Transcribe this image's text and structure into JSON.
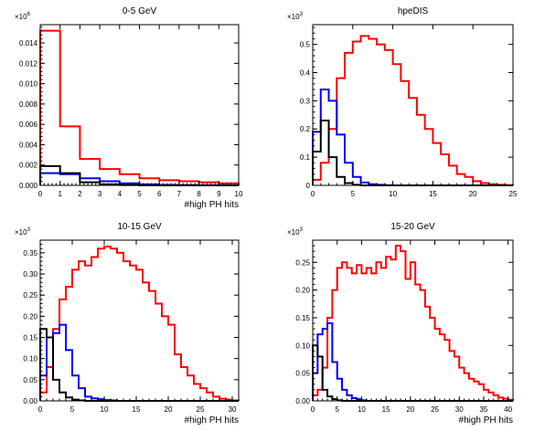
{
  "chart_data": [
    {
      "type": "histogram",
      "title": "0-5 GeV",
      "xlabel": "#high PH hits",
      "multiplier_label": "×10",
      "multiplier_exp": "6",
      "xlim": [
        0,
        10
      ],
      "ylim": [
        0,
        0.0158
      ],
      "xticks": [
        0,
        1,
        2,
        3,
        4,
        5,
        6,
        7,
        8,
        9,
        10
      ],
      "yticks": [
        0,
        0.002,
        0.004,
        0.006,
        0.008,
        0.01,
        0.012,
        0.014
      ],
      "ytick_labels": [
        "0.000",
        "0.002",
        "0.004",
        "0.006",
        "0.008",
        "0.010",
        "0.012",
        "0.014"
      ],
      "bin_edges": [
        0,
        1,
        2,
        3,
        4,
        5,
        6,
        7,
        8,
        9,
        10
      ],
      "series": [
        {
          "color": "#ff0000",
          "values": [
            0.0152,
            0.0058,
            0.0026,
            0.0016,
            0.0011,
            0.0007,
            0.0005,
            0.0004,
            0.0003,
            0.0002
          ]
        },
        {
          "color": "#0000ff",
          "values": [
            0.0012,
            0.0011,
            0.0007,
            0.0004,
            0.0002,
            0.0001,
            5e-05,
            3e-05,
            2e-05,
            1e-05
          ]
        },
        {
          "color": "#000000",
          "values": [
            0.0019,
            0.0012,
            0.0003,
            0.0001,
            3e-05,
            1e-05,
            0,
            0,
            0,
            0
          ]
        }
      ]
    },
    {
      "type": "histogram",
      "title": "hpeDIS",
      "xlabel": "",
      "multiplier_label": "×10",
      "multiplier_exp": "3",
      "xlim": [
        0,
        25
      ],
      "ylim": [
        0,
        0.57
      ],
      "xticks": [
        0,
        5,
        10,
        15,
        20,
        25
      ],
      "yticks": [
        0,
        0.1,
        0.2,
        0.3,
        0.4,
        0.5
      ],
      "ytick_labels": [
        "0",
        "0.1",
        "0.2",
        "0.3",
        "0.4",
        "0.5"
      ],
      "bin_edges": [
        0,
        1,
        2,
        3,
        4,
        5,
        6,
        7,
        8,
        9,
        10,
        11,
        12,
        13,
        14,
        15,
        16,
        17,
        18,
        19,
        20,
        21,
        22,
        23,
        24,
        25
      ],
      "series": [
        {
          "color": "#ff0000",
          "values": [
            0.02,
            0.08,
            0.2,
            0.38,
            0.47,
            0.51,
            0.53,
            0.52,
            0.5,
            0.48,
            0.43,
            0.37,
            0.31,
            0.25,
            0.2,
            0.15,
            0.11,
            0.07,
            0.04,
            0.03,
            0.015,
            0.008,
            0.004,
            0.002,
            0.001
          ]
        },
        {
          "color": "#0000ff",
          "values": [
            0.19,
            0.34,
            0.3,
            0.18,
            0.08,
            0.03,
            0.01,
            0.004,
            0.002,
            0.001,
            0,
            0,
            0,
            0,
            0,
            0,
            0,
            0,
            0,
            0,
            0,
            0,
            0,
            0,
            0
          ]
        },
        {
          "color": "#000000",
          "values": [
            0.12,
            0.23,
            0.1,
            0.03,
            0.008,
            0.002,
            0,
            0,
            0,
            0,
            0,
            0,
            0,
            0,
            0,
            0,
            0,
            0,
            0,
            0,
            0,
            0,
            0,
            0,
            0
          ]
        }
      ]
    },
    {
      "type": "histogram",
      "title": "10-15 GeV",
      "xlabel": "#high PH hits",
      "multiplier_label": "×10",
      "multiplier_exp": "3",
      "xlim": [
        0,
        31
      ],
      "ylim": [
        0,
        0.38
      ],
      "xticks": [
        0,
        5,
        10,
        15,
        20,
        25,
        30
      ],
      "yticks": [
        0,
        0.05,
        0.1,
        0.15,
        0.2,
        0.25,
        0.3,
        0.35
      ],
      "ytick_labels": [
        "0.00",
        "0.05",
        "0.10",
        "0.15",
        "0.20",
        "0.25",
        "0.30",
        "0.35"
      ],
      "bin_edges": [
        0,
        1,
        2,
        3,
        4,
        5,
        6,
        7,
        8,
        9,
        10,
        11,
        12,
        13,
        14,
        15,
        16,
        17,
        18,
        19,
        20,
        21,
        22,
        23,
        24,
        25,
        26,
        27,
        28,
        29,
        30,
        31
      ],
      "series": [
        {
          "color": "#ff0000",
          "values": [
            0.02,
            0.08,
            0.17,
            0.24,
            0.27,
            0.31,
            0.33,
            0.32,
            0.34,
            0.36,
            0.365,
            0.36,
            0.35,
            0.33,
            0.32,
            0.31,
            0.28,
            0.26,
            0.23,
            0.2,
            0.18,
            0.11,
            0.08,
            0.06,
            0.04,
            0.03,
            0.02,
            0.01,
            0.005,
            0.003,
            0.001
          ]
        },
        {
          "color": "#0000ff",
          "values": [
            0.06,
            0.15,
            0.16,
            0.18,
            0.12,
            0.06,
            0.03,
            0.01,
            0.006,
            0.004,
            0.002,
            0.001,
            0,
            0,
            0,
            0,
            0,
            0,
            0,
            0,
            0,
            0,
            0,
            0,
            0,
            0,
            0,
            0,
            0,
            0,
            0
          ]
        },
        {
          "color": "#000000",
          "values": [
            0.17,
            0.15,
            0.05,
            0.02,
            0.008,
            0.003,
            0.001,
            0,
            0,
            0,
            0,
            0,
            0,
            0,
            0,
            0,
            0,
            0,
            0,
            0,
            0,
            0,
            0,
            0,
            0,
            0,
            0,
            0,
            0,
            0,
            0
          ]
        }
      ]
    },
    {
      "type": "histogram",
      "title": "15-20 GeV",
      "xlabel": "#high PH hits",
      "multiplier_label": "×10",
      "multiplier_exp": "3",
      "xlim": [
        0,
        41
      ],
      "ylim": [
        0,
        0.29
      ],
      "xticks": [
        0,
        5,
        10,
        15,
        20,
        25,
        30,
        35,
        40
      ],
      "yticks": [
        0,
        0.05,
        0.1,
        0.15,
        0.2,
        0.25
      ],
      "ytick_labels": [
        "0.00",
        "0.05",
        "0.10",
        "0.15",
        "0.20",
        "0.25"
      ],
      "bin_edges": [
        0,
        1,
        2,
        3,
        4,
        5,
        6,
        7,
        8,
        9,
        10,
        11,
        12,
        13,
        14,
        15,
        16,
        17,
        18,
        19,
        20,
        21,
        22,
        23,
        24,
        25,
        26,
        27,
        28,
        29,
        30,
        31,
        32,
        33,
        34,
        35,
        36,
        37,
        38,
        39,
        40,
        41
      ],
      "series": [
        {
          "color": "#ff0000",
          "values": [
            0.01,
            0.02,
            0.06,
            0.15,
            0.2,
            0.24,
            0.25,
            0.24,
            0.23,
            0.245,
            0.23,
            0.24,
            0.23,
            0.25,
            0.24,
            0.26,
            0.255,
            0.28,
            0.27,
            0.22,
            0.25,
            0.21,
            0.2,
            0.17,
            0.15,
            0.13,
            0.12,
            0.11,
            0.09,
            0.08,
            0.06,
            0.05,
            0.04,
            0.035,
            0.03,
            0.02,
            0.015,
            0.01,
            0.006,
            0.004,
            0.002
          ]
        },
        {
          "color": "#0000ff",
          "values": [
            0.05,
            0.12,
            0.13,
            0.14,
            0.07,
            0.04,
            0.02,
            0.01,
            0.005,
            0.003,
            0.001,
            0,
            0,
            0,
            0,
            0,
            0,
            0,
            0,
            0,
            0,
            0,
            0,
            0,
            0,
            0,
            0,
            0,
            0,
            0,
            0,
            0,
            0,
            0,
            0,
            0,
            0,
            0,
            0,
            0,
            0
          ]
        },
        {
          "color": "#000000",
          "values": [
            0.1,
            0.08,
            0.02,
            0.008,
            0.003,
            0.001,
            0,
            0,
            0,
            0,
            0,
            0,
            0,
            0,
            0,
            0,
            0,
            0,
            0,
            0,
            0,
            0,
            0,
            0,
            0,
            0,
            0,
            0,
            0,
            0,
            0,
            0,
            0,
            0,
            0,
            0,
            0,
            0,
            0,
            0,
            0
          ]
        }
      ]
    }
  ]
}
